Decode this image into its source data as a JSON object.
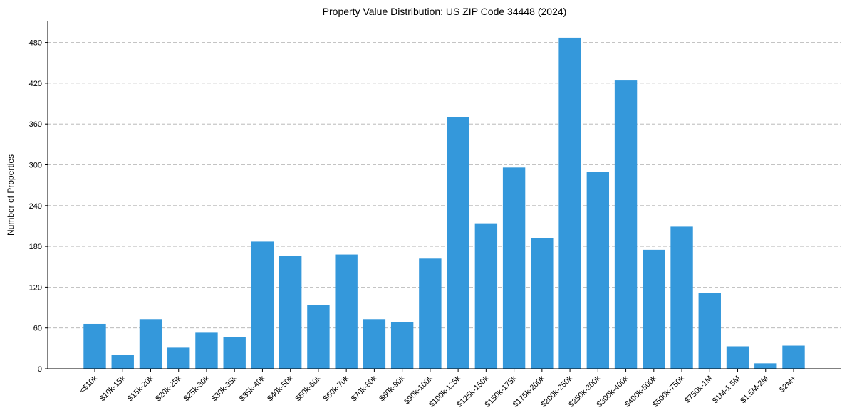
{
  "chart_data": {
    "type": "bar",
    "title": "Property Value Distribution: US ZIP Code 34448 (2024)",
    "xlabel": "",
    "ylabel": "Number of Properties",
    "categories": [
      "<$10k",
      "$10k-15k",
      "$15k-20k",
      "$20k-25k",
      "$25k-30k",
      "$30k-35k",
      "$35k-40k",
      "$40k-50k",
      "$50k-60k",
      "$60k-70k",
      "$70k-80k",
      "$80k-90k",
      "$90k-100k",
      "$100k-125k",
      "$125k-150k",
      "$150k-175k",
      "$175k-200k",
      "$200k-250k",
      "$250k-300k",
      "$300k-400k",
      "$400k-500k",
      "$500k-750k",
      "$750k-1M",
      "$1M-1.5M",
      "$1.5M-2M",
      "$2M+"
    ],
    "values": [
      66,
      20,
      73,
      31,
      53,
      47,
      187,
      166,
      94,
      168,
      73,
      69,
      162,
      370,
      214,
      296,
      192,
      487,
      290,
      424,
      175,
      209,
      112,
      33,
      8,
      34
    ],
    "yticks": [
      0,
      60,
      120,
      180,
      240,
      300,
      360,
      420,
      480
    ],
    "ylim": [
      0,
      511
    ],
    "grid": "y-dashed",
    "bar_color": "#3498db"
  }
}
